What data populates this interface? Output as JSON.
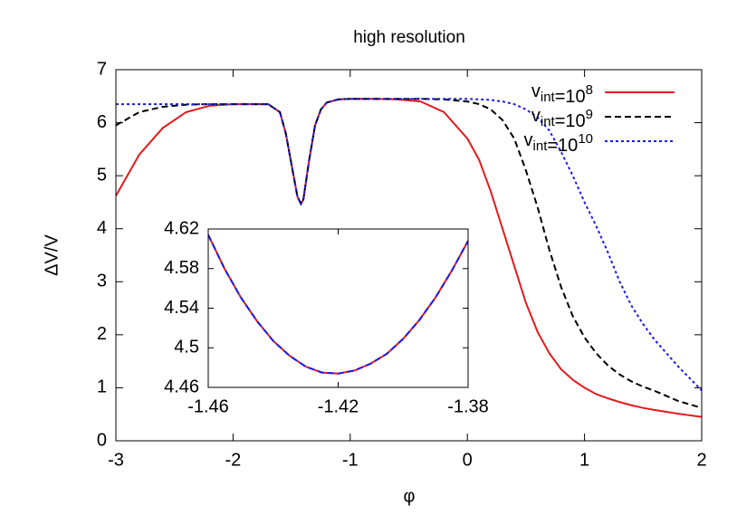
{
  "chart_data": [
    {
      "type": "line",
      "title": "high resolution",
      "xlabel": "φ",
      "ylabel": "ΔV/V",
      "x": [
        -3,
        -2.8,
        -2.6,
        -2.4,
        -2.2,
        -2,
        -1.8,
        -1.7,
        -1.6,
        -1.55,
        -1.5,
        -1.45,
        -1.42,
        -1.4,
        -1.35,
        -1.3,
        -1.25,
        -1.2,
        -1.1,
        -1,
        -0.8,
        -0.6,
        -0.4,
        -0.2,
        0,
        0.1,
        0.2,
        0.3,
        0.4,
        0.5,
        0.6,
        0.7,
        0.8,
        0.9,
        1,
        1.1,
        1.2,
        1.3,
        1.4,
        1.5,
        1.6,
        1.8,
        2
      ],
      "series": [
        {
          "name": "v_int=10^8",
          "color": "#e41a1c",
          "dash": "solid",
          "values": [
            4.62,
            5.4,
            5.9,
            6.2,
            6.32,
            6.35,
            6.35,
            6.35,
            6.2,
            5.8,
            5.2,
            4.6,
            4.47,
            4.55,
            5.3,
            5.95,
            6.25,
            6.38,
            6.44,
            6.45,
            6.45,
            6.44,
            6.4,
            6.2,
            5.7,
            5.3,
            4.7,
            4.0,
            3.3,
            2.6,
            2.05,
            1.65,
            1.35,
            1.15,
            1.0,
            0.88,
            0.8,
            0.73,
            0.67,
            0.62,
            0.58,
            0.51,
            0.45
          ]
        },
        {
          "name": "v_int=10^9",
          "color": "#000000",
          "dash": "dashed",
          "values": [
            5.95,
            6.2,
            6.3,
            6.34,
            6.35,
            6.35,
            6.35,
            6.35,
            6.2,
            5.8,
            5.2,
            4.6,
            4.47,
            4.55,
            5.3,
            5.95,
            6.25,
            6.38,
            6.44,
            6.45,
            6.45,
            6.45,
            6.45,
            6.44,
            6.4,
            6.35,
            6.25,
            6.05,
            5.7,
            5.1,
            4.4,
            3.6,
            2.9,
            2.35,
            1.95,
            1.65,
            1.42,
            1.25,
            1.12,
            1.02,
            0.94,
            0.75,
            0.62
          ]
        },
        {
          "name": "v_int=10^10",
          "color": "#1a1aee",
          "dash": "dotted",
          "values": [
            6.35,
            6.35,
            6.35,
            6.35,
            6.35,
            6.35,
            6.35,
            6.35,
            6.2,
            5.8,
            5.2,
            4.6,
            4.47,
            4.55,
            5.3,
            5.95,
            6.25,
            6.38,
            6.44,
            6.45,
            6.45,
            6.45,
            6.45,
            6.45,
            6.45,
            6.44,
            6.43,
            6.4,
            6.35,
            6.25,
            6.1,
            5.85,
            5.45,
            5.0,
            4.5,
            4.05,
            3.55,
            3.0,
            2.55,
            2.2,
            1.9,
            1.4,
            0.95
          ]
        }
      ],
      "xlim": [
        -3,
        2
      ],
      "ylim": [
        0,
        7
      ],
      "xticks": [
        -3,
        -2,
        -1,
        0,
        1,
        2
      ],
      "yticks": [
        0,
        1,
        2,
        3,
        4,
        5,
        6,
        7
      ],
      "legend": "upper right"
    },
    {
      "type": "line",
      "x": [
        -1.46,
        -1.455,
        -1.45,
        -1.445,
        -1.44,
        -1.435,
        -1.43,
        -1.425,
        -1.42,
        -1.415,
        -1.41,
        -1.405,
        -1.4,
        -1.395,
        -1.39,
        -1.385,
        -1.38
      ],
      "series": [
        {
          "color": "#e41a1c",
          "dash": "solid",
          "values": [
            4.614,
            4.58,
            4.551,
            4.527,
            4.507,
            4.492,
            4.481,
            4.475,
            4.474,
            4.477,
            4.484,
            4.494,
            4.509,
            4.528,
            4.551,
            4.578,
            4.608
          ]
        },
        {
          "color": "#1a1aee",
          "dash": "dashed",
          "values": [
            4.614,
            4.58,
            4.551,
            4.527,
            4.507,
            4.492,
            4.481,
            4.475,
            4.474,
            4.477,
            4.484,
            4.494,
            4.509,
            4.528,
            4.551,
            4.578,
            4.608
          ]
        }
      ],
      "xlim": [
        -1.46,
        -1.38
      ],
      "ylim": [
        4.46,
        4.62
      ],
      "xticks": [
        -1.46,
        -1.42,
        -1.38
      ],
      "yticks": [
        4.46,
        4.5,
        4.54,
        4.58,
        4.62
      ]
    }
  ]
}
